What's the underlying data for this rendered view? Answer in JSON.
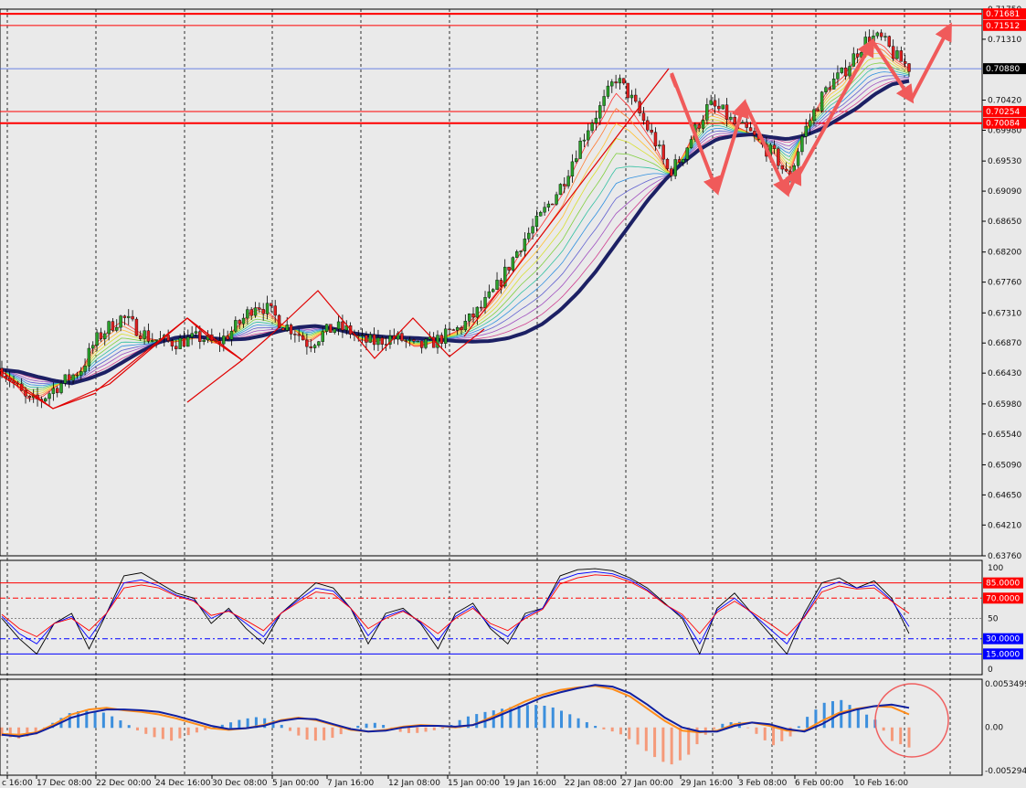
{
  "chart_data": [
    {
      "type": "candlestick",
      "title": "",
      "ylim": [
        0.6376,
        0.7175
      ],
      "y_ticks": [
        "0.71750",
        "0.71310",
        "0.70420",
        "0.69980",
        "0.69530",
        "0.69090",
        "0.68650",
        "0.68200",
        "0.67760",
        "0.67310",
        "0.66870",
        "0.66430",
        "0.65980",
        "0.65540",
        "0.65090",
        "0.64650",
        "0.64210",
        "0.63760"
      ],
      "x_ticks": [
        "c 16:00",
        "17 Dec 08:00",
        "22 Dec 00:00",
        "24 Dec 16:00",
        "30 Dec 08:00",
        "5 Jan 00:00",
        "7 Jan 16:00",
        "12 Jan 08:00",
        "15 Jan 00:00",
        "19 Jan 16:00",
        "22 Jan 08:00",
        "27 Jan 00:00",
        "29 Jan 16:00",
        "3 Feb 08:00",
        "6 Feb 00:00",
        "10 Feb 16:00"
      ],
      "horizontal_levels": [
        {
          "label": "0.71681",
          "value": 0.71681,
          "color": "#ff0000"
        },
        {
          "label": "0.71512",
          "value": 0.71512,
          "color": "#ff0000"
        },
        {
          "label": "0.70880",
          "value": 0.7088,
          "color": "#000000"
        },
        {
          "label": "0.70254",
          "value": 0.70254,
          "color": "#ff0000"
        },
        {
          "label": "0.70084",
          "value": 0.70084,
          "color": "#ff0000"
        }
      ],
      "price_path": [
        0.665,
        0.6625,
        0.66,
        0.6605,
        0.6622,
        0.6635,
        0.665,
        0.669,
        0.671,
        0.6725,
        0.671,
        0.6695,
        0.669,
        0.6688,
        0.6692,
        0.6695,
        0.6685,
        0.67,
        0.672,
        0.6745,
        0.6735,
        0.6715,
        0.6705,
        0.6685,
        0.67,
        0.671,
        0.6705,
        0.669,
        0.6688,
        0.6695,
        0.6692,
        0.668,
        0.6685,
        0.6695,
        0.6705,
        0.672,
        0.674,
        0.6765,
        0.68,
        0.6835,
        0.686,
        0.689,
        0.692,
        0.6965,
        0.7005,
        0.7035,
        0.7075,
        0.705,
        0.7015,
        0.698,
        0.6935,
        0.696,
        0.7,
        0.7035,
        0.7025,
        0.7005,
        0.6995,
        0.6975,
        0.696,
        0.6925,
        0.699,
        0.703,
        0.7065,
        0.708,
        0.711,
        0.7135,
        0.713,
        0.7105,
        0.709
      ],
      "trend_ribbon": [
        0.6648,
        0.6645,
        0.6638,
        0.6632,
        0.6628,
        0.6635,
        0.6645,
        0.666,
        0.6675,
        0.6688,
        0.6695,
        0.6697,
        0.6694,
        0.6692,
        0.6693,
        0.6698,
        0.6705,
        0.671,
        0.6712,
        0.6708,
        0.6702,
        0.6698,
        0.6696,
        0.6695,
        0.6694,
        0.6692,
        0.669,
        0.6689,
        0.669,
        0.6694,
        0.6702,
        0.6715,
        0.6735,
        0.676,
        0.679,
        0.6825,
        0.686,
        0.6895,
        0.6925,
        0.695,
        0.697,
        0.6985,
        0.699,
        0.6992,
        0.6988,
        0.6985,
        0.699,
        0.7,
        0.7015,
        0.703,
        0.705,
        0.7065,
        0.707
      ],
      "annotations": [
        "zigzag-wave-outline",
        "bullish-arrow-path"
      ]
    },
    {
      "type": "line",
      "name": "stochastic",
      "ylim": [
        0,
        100
      ],
      "y_ticks": [
        "100",
        "50",
        "0"
      ],
      "levels": [
        {
          "label": "85.0000",
          "value": 85,
          "color": "#ff0000"
        },
        {
          "label": "70.0000",
          "value": 70,
          "color": "#ff0000"
        },
        {
          "label": "30.0000",
          "value": 30,
          "color": "#0000ff"
        },
        {
          "label": "15.0000",
          "value": 15,
          "color": "#0000ff"
        }
      ],
      "series": [
        {
          "color": "#000000",
          "values": [
            50,
            30,
            15,
            45,
            55,
            20,
            55,
            92,
            95,
            85,
            75,
            70,
            45,
            60,
            40,
            25,
            55,
            70,
            85,
            80,
            60,
            25,
            55,
            60,
            45,
            20,
            55,
            65,
            40,
            25,
            55,
            60,
            92,
            98,
            99,
            97,
            90,
            80,
            65,
            50,
            15,
            60,
            75,
            55,
            35,
            15,
            55,
            85,
            90,
            80,
            87,
            70,
            35
          ]
        },
        {
          "color": "#0000ff",
          "values": [
            52,
            35,
            25,
            45,
            52,
            30,
            55,
            85,
            88,
            82,
            73,
            68,
            50,
            58,
            45,
            32,
            55,
            68,
            80,
            77,
            60,
            33,
            52,
            58,
            46,
            28,
            52,
            62,
            42,
            32,
            52,
            60,
            88,
            94,
            96,
            94,
            88,
            78,
            64,
            52,
            25,
            58,
            70,
            55,
            40,
            25,
            52,
            80,
            86,
            80,
            83,
            68,
            42
          ]
        },
        {
          "color": "#ff0000",
          "values": [
            54,
            40,
            32,
            45,
            50,
            38,
            55,
            80,
            83,
            80,
            72,
            67,
            53,
            57,
            48,
            38,
            55,
            66,
            76,
            74,
            60,
            40,
            50,
            57,
            47,
            35,
            50,
            60,
            45,
            38,
            50,
            59,
            84,
            90,
            93,
            92,
            86,
            77,
            64,
            54,
            35,
            56,
            67,
            56,
            45,
            33,
            51,
            76,
            82,
            79,
            80,
            67,
            55
          ]
        }
      ]
    },
    {
      "type": "bar",
      "name": "macd",
      "ylim": [
        -0.005294,
        0.005349
      ],
      "y_ticks": [
        "0.0053499",
        "0.00",
        "-0.005294"
      ],
      "values": [
        -0.001,
        -0.0013,
        -0.0008,
        0.0006,
        0.0018,
        0.0022,
        0.0018,
        0.0008,
        -0.0004,
        -0.0012,
        -0.0016,
        -0.0008,
        -0.0002,
        0.0004,
        0.001,
        0.0013,
        0.0008,
        -0.0006,
        -0.0016,
        -0.0015,
        -0.0006,
        0.0004,
        0.0006,
        -0.0004,
        -0.0007,
        -0.0004,
        0.0,
        0.0012,
        0.0018,
        0.0022,
        0.0026,
        0.0028,
        0.0026,
        0.0018,
        0.0008,
        -0.0001,
        -0.0006,
        -0.0018,
        -0.0034,
        -0.0046,
        -0.0036,
        -0.001,
        0.0004,
        0.0008,
        -0.0006,
        -0.0022,
        -0.0012,
        0.0012,
        0.003,
        0.0034,
        0.0022,
        0.001,
        -0.0016,
        -0.0024
      ],
      "signal_line": [
        -0.0008,
        -0.0009,
        -0.0006,
        0.0004,
        0.0016,
        0.0022,
        0.0024,
        0.0021,
        0.0019,
        0.0016,
        0.0011,
        0.0005,
        -0.0001,
        -0.0003,
        -0.0001,
        0.0003,
        0.0009,
        0.0012,
        0.0009,
        0.0003,
        -0.0003,
        -0.0005,
        -0.0003,
        0.0001,
        0.0003,
        0.0002,
        0.0,
        0.0003,
        0.0012,
        0.0022,
        0.0032,
        0.004,
        0.0046,
        0.0049,
        0.0051,
        0.0047,
        0.0038,
        0.0023,
        0.0008,
        -0.0004,
        -0.0006,
        -0.0004,
        0.0004,
        0.0006,
        0.0002,
        -0.0004,
        -0.0004,
        0.0008,
        0.0018,
        0.0023,
        0.0026,
        0.0025,
        0.0016
      ],
      "main_line": [
        -0.0009,
        -0.0011,
        -0.0007,
        0.0002,
        0.0012,
        0.0018,
        0.0022,
        0.0022,
        0.0021,
        0.0019,
        0.0014,
        0.0008,
        0.0002,
        -0.0002,
        -0.0001,
        0.0002,
        0.0008,
        0.0011,
        0.001,
        0.0004,
        -0.0002,
        -0.0005,
        -0.0004,
        0.0,
        0.0002,
        0.0002,
        0.0001,
        0.0003,
        0.001,
        0.0019,
        0.0028,
        0.0037,
        0.0043,
        0.0048,
        0.0052,
        0.005,
        0.0042,
        0.0028,
        0.0012,
        0.0,
        -0.0005,
        -0.0005,
        0.0002,
        0.0006,
        0.0004,
        -0.0002,
        -0.0005,
        0.0004,
        0.0016,
        0.0022,
        0.0026,
        0.0028,
        0.0024
      ]
    }
  ]
}
